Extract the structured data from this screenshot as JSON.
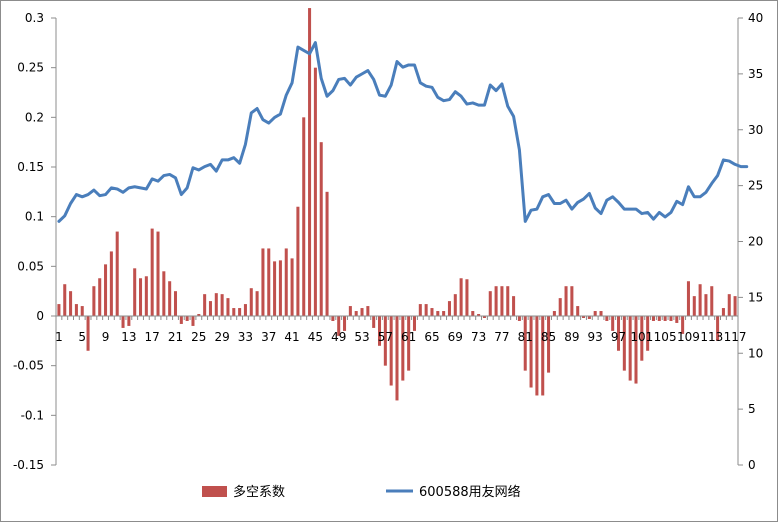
{
  "chart_data": {
    "type": "bar+line",
    "title": "",
    "xlabel": "",
    "ylabel_left": "",
    "ylabel_right": "",
    "grid": false,
    "legend_position": "bottom",
    "left_axis": {
      "ylim": [
        -0.15,
        0.3
      ],
      "ticks": [
        0.3,
        0.25,
        0.2,
        0.15,
        0.1,
        0.05,
        0,
        -0.05,
        -0.1,
        -0.15
      ],
      "tick_labels": [
        "0.3",
        "0.25",
        "0.2",
        "0.15",
        "0.1",
        "0.05",
        "0",
        "-0.05",
        "-0.1",
        "-0.15"
      ]
    },
    "right_axis": {
      "ylim": [
        0,
        40
      ],
      "ticks": [
        40,
        35,
        30,
        25,
        20,
        15,
        10,
        5,
        0
      ],
      "tick_labels": [
        "40",
        "35",
        "30",
        "25",
        "20",
        "15",
        "10",
        "5",
        "0"
      ]
    },
    "x_tick_labels": [
      "1",
      "5",
      "9",
      "13",
      "17",
      "21",
      "25",
      "29",
      "33",
      "37",
      "41",
      "45",
      "49",
      "53",
      "57",
      "61",
      "65",
      "69",
      "73",
      "77",
      "81",
      "85",
      "89",
      "93",
      "97",
      "101",
      "105",
      "109",
      "113",
      "117"
    ],
    "x_tick_label_rendering": "1 5 9 13 17 21 25 29 33 37 41 45 49 53 57 61 65 69 73 77 81 85 89 93 97 101 105 109 113 117 (101 and 109 rendered overlapping as in original)",
    "series": [
      {
        "name": "多空系数",
        "type": "bar",
        "axis": "left",
        "color": "#c0504d",
        "values": [
          0.012,
          0.032,
          0.025,
          0.012,
          0.01,
          -0.035,
          0.03,
          0.038,
          0.052,
          0.065,
          0.085,
          -0.012,
          -0.01,
          0.048,
          0.038,
          0.04,
          0.088,
          0.085,
          0.045,
          0.035,
          0.025,
          -0.008,
          -0.005,
          -0.01,
          0.002,
          0.022,
          0.015,
          0.023,
          0.022,
          0.018,
          0.008,
          0.008,
          0.012,
          0.028,
          0.025,
          0.068,
          0.068,
          0.055,
          0.056,
          0.068,
          0.058,
          0.11,
          0.2,
          0.31,
          0.25,
          0.175,
          0.125,
          -0.005,
          -0.02,
          -0.015,
          0.01,
          0.005,
          0.008,
          0.01,
          -0.012,
          -0.03,
          -0.05,
          -0.07,
          -0.085,
          -0.065,
          -0.055,
          -0.015,
          0.012,
          0.012,
          0.008,
          0.005,
          0.005,
          0.015,
          0.022,
          0.038,
          0.037,
          0.005,
          0.002,
          -0.002,
          0.025,
          0.03,
          0.03,
          0.03,
          0.02,
          -0.005,
          -0.055,
          -0.072,
          -0.08,
          -0.08,
          -0.057,
          0.005,
          0.018,
          0.03,
          0.03,
          0.01,
          -0.002,
          -0.003,
          0.005,
          0.005,
          -0.005,
          -0.015,
          -0.035,
          -0.055,
          -0.065,
          -0.068,
          -0.045,
          -0.035,
          -0.005,
          -0.005,
          -0.005,
          -0.005,
          -0.007,
          -0.018,
          0.035,
          0.02,
          0.032,
          0.022,
          0.03,
          -0.025,
          0.008,
          0.022,
          0.02
        ]
      },
      {
        "name": "600588用友网络",
        "type": "line",
        "axis": "right",
        "color": "#4a7ebb",
        "values": [
          21.8,
          22.3,
          23.4,
          24.2,
          24.0,
          24.2,
          24.6,
          24.1,
          24.2,
          24.8,
          24.7,
          24.4,
          24.8,
          24.9,
          24.8,
          24.7,
          25.6,
          25.4,
          25.9,
          26.0,
          25.7,
          24.2,
          24.8,
          26.6,
          26.4,
          26.7,
          26.9,
          26.3,
          27.3,
          27.3,
          27.5,
          27.0,
          28.7,
          31.5,
          31.9,
          30.9,
          30.6,
          31.1,
          31.4,
          33.1,
          34.2,
          37.4,
          37.1,
          36.8,
          37.8,
          34.6,
          33.0,
          33.5,
          34.5,
          34.6,
          34.0,
          34.7,
          35.0,
          35.3,
          34.5,
          33.1,
          33.0,
          34.0,
          36.1,
          35.6,
          35.8,
          35.8,
          34.2,
          33.9,
          33.8,
          32.9,
          32.6,
          32.7,
          33.4,
          33.0,
          32.3,
          32.4,
          32.2,
          32.2,
          34.0,
          33.5,
          34.1,
          32.1,
          31.2,
          28.2,
          21.8,
          22.8,
          22.9,
          24.0,
          24.2,
          23.4,
          23.4,
          23.7,
          22.9,
          23.5,
          23.8,
          24.3,
          23.0,
          22.5,
          23.7,
          24.0,
          23.5,
          22.9,
          22.9,
          22.9,
          22.5,
          22.6,
          22.0,
          22.6,
          22.2,
          22.6,
          23.6,
          23.3,
          24.9,
          24.0,
          24.0,
          24.4,
          25.2,
          25.9,
          27.3,
          27.2,
          26.9,
          26.7,
          26.7
        ]
      }
    ]
  },
  "legend": {
    "items": [
      {
        "label": "多空系数",
        "swatch": "bar"
      },
      {
        "label": "600588用友网络",
        "swatch": "line"
      }
    ]
  }
}
